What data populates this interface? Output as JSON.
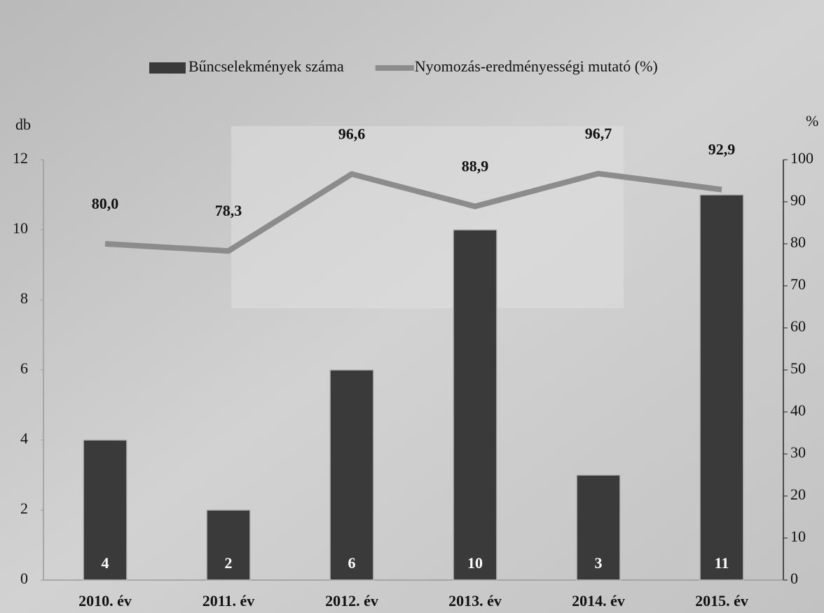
{
  "chart_data": {
    "type": "combo",
    "categories": [
      "2010. év",
      "2011. év",
      "2012. év",
      "2013. év",
      "2014. év",
      "2015. év"
    ],
    "ylabel": "db",
    "y2label": "%",
    "ylim": [
      0,
      12
    ],
    "yticks": [
      0,
      2,
      4,
      6,
      8,
      10,
      12
    ],
    "y2lim": [
      0,
      100
    ],
    "y2ticks": [
      0,
      10,
      20,
      30,
      40,
      50,
      60,
      70,
      80,
      90,
      100
    ],
    "legend": "top",
    "series": [
      {
        "name": "Bűncselekmények száma",
        "type": "bar",
        "color": "#3a3a3a",
        "values": [
          4,
          2,
          6,
          10,
          3,
          11
        ]
      },
      {
        "name": "Nyomozás-eredményességi mutató (%)",
        "type": "line",
        "axis": "y2",
        "color": "#8c8c8c",
        "values": [
          80.0,
          78.3,
          96.6,
          88.9,
          96.7,
          92.9
        ],
        "value_labels": [
          "80,0",
          "78,3",
          "96,6",
          "88,9",
          "96,7",
          "92,9"
        ]
      }
    ]
  }
}
